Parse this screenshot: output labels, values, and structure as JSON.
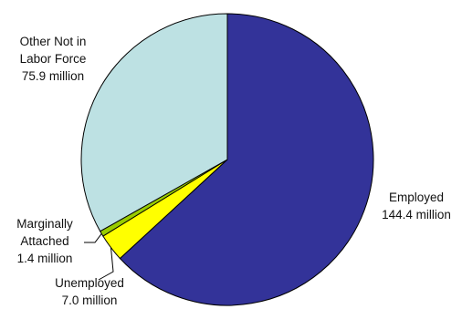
{
  "chart_data": {
    "type": "pie",
    "title": "",
    "unit": "million",
    "slices": [
      {
        "name": "Employed",
        "value": 144.4,
        "label": "144.4 million",
        "color": "#333399"
      },
      {
        "name": "Unemployed",
        "value": 7.0,
        "label": "7.0 million",
        "color": "#ffff00"
      },
      {
        "name": "Marginally Attached",
        "value": 1.4,
        "label": "1.4 million",
        "color": "#99cc00"
      },
      {
        "name": "Other Not in Labor Force",
        "value": 75.9,
        "label": "75.9 million",
        "color": "#bde1e3"
      }
    ],
    "legend": "none"
  },
  "labels": {
    "other": {
      "line1": "Other Not in",
      "line2": "Labor Force",
      "line3": "75.9 million"
    },
    "employed": {
      "line1": "Employed",
      "line2": "144.4 million"
    },
    "marginal": {
      "line1": "Marginally",
      "line2": "Attached",
      "line3": "1.4 million"
    },
    "unemployed": {
      "line1": "Unemployed",
      "line2": "7.0 million"
    }
  }
}
